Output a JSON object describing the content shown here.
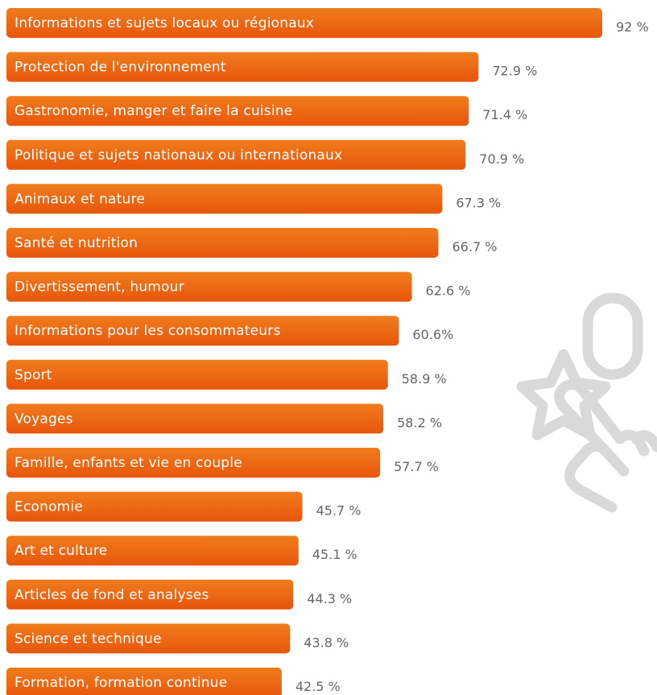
{
  "chart_data": {
    "type": "bar",
    "orientation": "horizontal",
    "categories": [
      "Informations et sujets locaux ou régionaux",
      "Protection de l'environnement",
      "Gastronomie, manger et faire la cuisine",
      "Politique et sujets nationaux ou internationaux",
      "Animaux et nature",
      "Santé et nutrition",
      "Divertissement, humour",
      "Informations pour les consommateurs",
      "Sport",
      "Voyages",
      "Famille, enfants et vie en couple",
      "Economie",
      "Art et culture",
      "Articles de fond et analyses",
      "Science et technique",
      "Formation, formation continue"
    ],
    "values": [
      92,
      72.9,
      71.4,
      70.9,
      67.3,
      66.7,
      62.6,
      60.6,
      58.9,
      58.2,
      57.7,
      45.7,
      45.1,
      44.3,
      43.8,
      42.5
    ],
    "value_labels": [
      "92 %",
      "72.9 %",
      "71.4 %",
      "70.9 %",
      "67.3 %",
      "66.7 %",
      "62.6 %",
      "60.6%",
      "58.9 %",
      "58.2 %",
      "57.7 %",
      "45.7 %",
      "45.1 %",
      "44.3 %",
      "43.8 %",
      "42.5 %"
    ],
    "unit": "%",
    "xlim": [
      0,
      100
    ],
    "grid": false,
    "legend": "none",
    "colors": {
      "bar_top": "#f07c1e",
      "bar_bottom": "#e8560c",
      "value_text": "#666666",
      "label_text": "#ffffff"
    },
    "decoration": "hand-with-star-icon"
  }
}
